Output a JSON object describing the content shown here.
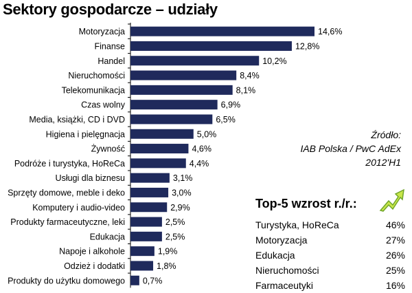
{
  "title": "Sektory gospodarcze – udziały",
  "source": {
    "line1": "Źródło:",
    "line2": "IAB Polska / PwC AdEx",
    "line3": "2012'H1"
  },
  "top5": {
    "title": "Top-5 wzrost r./r.:",
    "rows": [
      {
        "label": "Turystyka, HoReCa",
        "value": "46%"
      },
      {
        "label": "Motoryzacja",
        "value": "27%"
      },
      {
        "label": "Edukacja",
        "value": "26%"
      },
      {
        "label": "Nieruchomości",
        "value": "25%"
      },
      {
        "label": "Farmaceutyki",
        "value": "16%"
      }
    ],
    "arrow_icon": "growth-arrow-icon"
  },
  "colors": {
    "bar": "#1f2a5c",
    "arrow_light": "#c8e64a",
    "arrow_dark": "#6fa52a"
  },
  "chart_data": {
    "type": "bar",
    "orientation": "horizontal",
    "title": "Sektory gospodarcze – udziały",
    "categories": [
      "Motoryzacja",
      "Finanse",
      "Handel",
      "Nieruchomości",
      "Telekomunikacja",
      "Czas wolny",
      "Media, książki, CD i DVD",
      "Higiena i pielęgnacja",
      "Żywność",
      "Podróże i turystyka, HoReCa",
      "Usługi dla biznesu",
      "Sprzęty domowe, meble i deko",
      "Komputery i audio-video",
      "Produkty farmaceutyczne, leki",
      "Edukacja",
      "Napoje i alkohole",
      "Odzież i dodatki",
      "Produkty do użytku domowego"
    ],
    "values": [
      14.6,
      12.8,
      10.2,
      8.4,
      8.1,
      6.9,
      6.5,
      5.0,
      4.6,
      4.4,
      3.1,
      3.0,
      2.9,
      2.5,
      2.5,
      1.9,
      1.8,
      0.7
    ],
    "value_labels": [
      "14,6%",
      "12,8%",
      "10,2%",
      "8,4%",
      "8,1%",
      "6,9%",
      "6,5%",
      "5,0%",
      "4,6%",
      "4,4%",
      "3,1%",
      "3,0%",
      "2,9%",
      "2,5%",
      "2,5%",
      "1,9%",
      "1,8%",
      "0,7%"
    ],
    "xlim": [
      0,
      16
    ],
    "grid": false,
    "legend": "none"
  }
}
